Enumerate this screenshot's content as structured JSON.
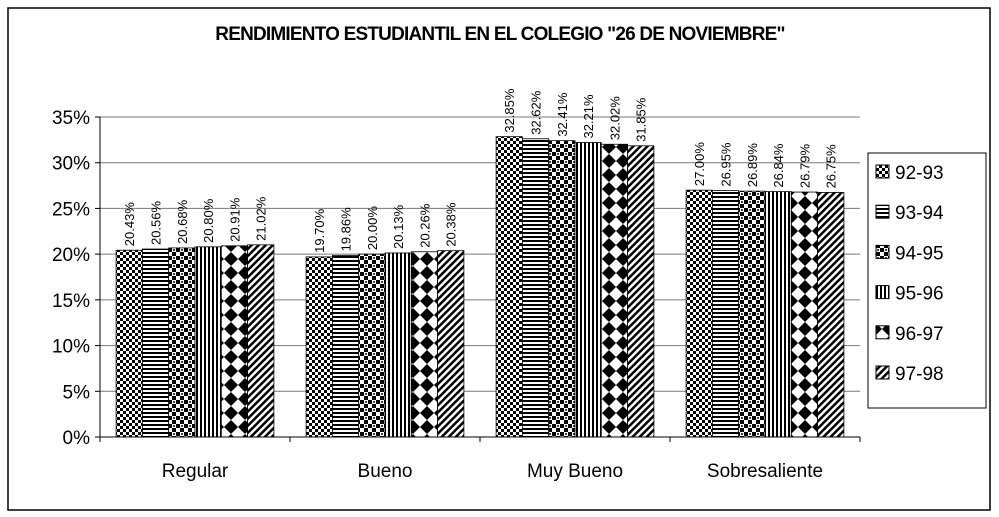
{
  "chart_data": {
    "type": "bar",
    "title": "RENDIMIENTO ESTUDIANTIL EN EL COLEGIO \"26 DE NOVIEMBRE\"",
    "categories": [
      "Regular",
      "Bueno",
      "Muy Bueno",
      "Sobresaliente"
    ],
    "series": [
      {
        "name": "92-93",
        "color": "#000000",
        "values": [
          20.43,
          19.7,
          32.85,
          27.0
        ],
        "value_labels": [
          "20.43%",
          "19.70%",
          "32.85%",
          "27.00%"
        ]
      },
      {
        "name": "93-94",
        "color": "#000000",
        "values": [
          20.56,
          19.86,
          32.62,
          26.95
        ],
        "value_labels": [
          "20.56%",
          "19.86%",
          "32.62%",
          "26.95%"
        ]
      },
      {
        "name": "94-95",
        "color": "#000000",
        "values": [
          20.68,
          20.0,
          32.41,
          26.89
        ],
        "value_labels": [
          "20.68%",
          "20.00%",
          "32.41%",
          "26.89%"
        ]
      },
      {
        "name": "95-96",
        "color": "#000000",
        "values": [
          20.8,
          20.13,
          32.21,
          26.84
        ],
        "value_labels": [
          "20.80%",
          "20.13%",
          "32.21%",
          "26.84%"
        ]
      },
      {
        "name": "96-97",
        "color": "#000000",
        "values": [
          20.91,
          20.26,
          32.02,
          26.79
        ],
        "value_labels": [
          "20.91%",
          "20.26%",
          "32.02%",
          "26.79%"
        ]
      },
      {
        "name": "97-98",
        "color": "#000000",
        "values": [
          21.02,
          20.38,
          31.85,
          26.75
        ],
        "value_labels": [
          "21.02%",
          "20.38%",
          "31.85%",
          "26.75%"
        ]
      }
    ],
    "ylim": [
      0,
      35
    ],
    "yticks": [
      {
        "value": 0,
        "label": "0%"
      },
      {
        "value": 5,
        "label": "5%"
      },
      {
        "value": 10,
        "label": "10%"
      },
      {
        "value": 15,
        "label": "15%"
      },
      {
        "value": 20,
        "label": "20%"
      },
      {
        "value": 25,
        "label": "25%"
      },
      {
        "value": 30,
        "label": "30%"
      },
      {
        "value": 35,
        "label": "35%"
      }
    ],
    "grid": true,
    "legend": "right"
  }
}
